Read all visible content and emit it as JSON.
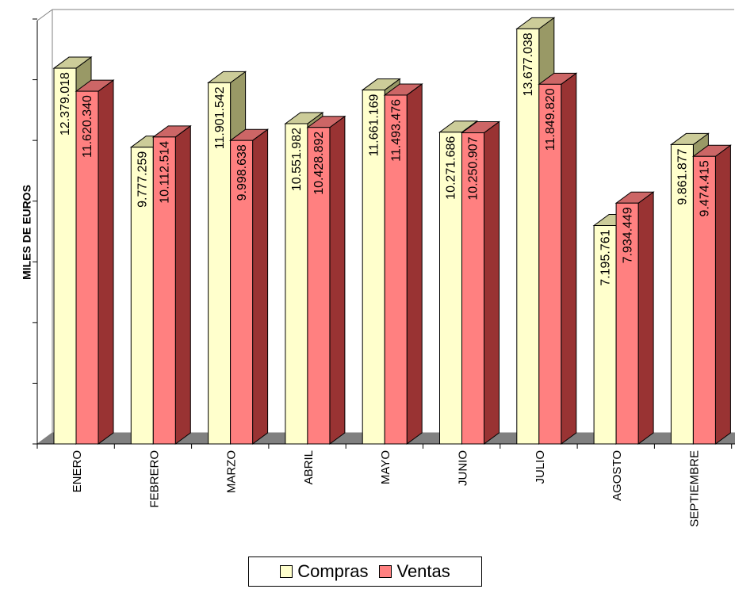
{
  "chart_data": {
    "type": "bar",
    "ylabel": "MILES DE EUROS",
    "categories": [
      "ENERO",
      "FEBRERO",
      "MARZO",
      "ABRIL",
      "MAYO",
      "JUNIO",
      "JULIO",
      "AGOSTO",
      "SEPTIEMBRE"
    ],
    "series": [
      {
        "name": "Compras",
        "values": [
          12379018,
          9777259,
          11901542,
          10551982,
          11661169,
          10271686,
          13677038,
          7195761,
          9861877
        ],
        "labels": [
          "12.379.018",
          "9.777.259",
          "11.901.542",
          "10.551.982",
          "11.661.169",
          "10.271.686",
          "13.677.038",
          "7.195.761",
          "9.861.877"
        ],
        "color": "#FFFFCC",
        "side_color": "#999966",
        "top_color": "#CCCC99"
      },
      {
        "name": "Ventas",
        "values": [
          11620340,
          10112514,
          9998638,
          10428892,
          11493476,
          10250907,
          11849820,
          7934449,
          9474415
        ],
        "labels": [
          "11.620.340",
          "10.112.514",
          "9.998.638",
          "10.428.892",
          "11.493.476",
          "10.250.907",
          "11.849.820",
          "7.934.449",
          "9.474.415"
        ],
        "color": "#FF8080",
        "side_color": "#993333",
        "top_color": "#CC6666"
      }
    ],
    "ylim": [
      0,
      14000000
    ],
    "grid": false,
    "legend_position": "bottom"
  }
}
